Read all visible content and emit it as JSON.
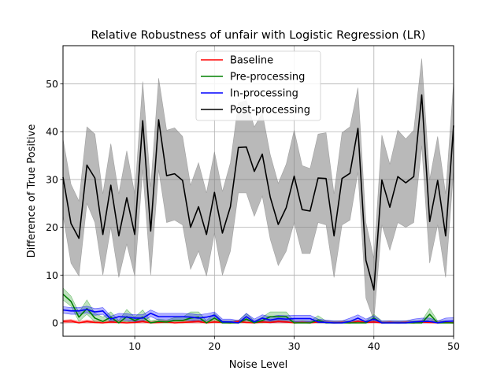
{
  "chart_data": {
    "type": "line",
    "title": "Relative Robustness of unfair with Logistic Regression (LR)",
    "xlabel": "Noise Level",
    "ylabel": "Difference of True Positive",
    "xlim": [
      1,
      50
    ],
    "ylim": [
      -2.8,
      58
    ],
    "xticks": [
      10,
      20,
      30,
      40,
      50
    ],
    "yticks": [
      0,
      10,
      20,
      30,
      40,
      50
    ],
    "grid": true,
    "legend_position": "upper center",
    "x": [
      1,
      2,
      3,
      4,
      5,
      6,
      7,
      8,
      9,
      10,
      11,
      12,
      13,
      14,
      15,
      16,
      17,
      18,
      19,
      20,
      21,
      22,
      23,
      24,
      25,
      26,
      27,
      28,
      29,
      30,
      31,
      32,
      33,
      34,
      35,
      36,
      37,
      38,
      39,
      40,
      41,
      42,
      43,
      44,
      45,
      46,
      47,
      48,
      49,
      50
    ],
    "series": [
      {
        "name": "Baseline",
        "color": "#ff0000",
        "band_color": "#ff0000",
        "values": [
          0.3,
          0.4,
          0.0,
          0.3,
          0.1,
          0.0,
          0.2,
          0.1,
          0.0,
          0.1,
          0.3,
          0.0,
          0.1,
          0.2,
          0.0,
          0.1,
          0.2,
          0.3,
          0.0,
          0.2,
          0.1,
          0.0,
          0.3,
          0.1,
          0.0,
          0.2,
          0.1,
          0.3,
          0.2,
          0.0,
          0.1,
          0.0,
          0.2,
          0.1,
          0.0,
          0.1,
          0.0,
          0.3,
          0.1,
          0.2,
          0.0,
          0.1,
          0.0,
          0.1,
          0.0,
          0.2,
          0.1,
          0.0,
          0.1,
          0.0
        ],
        "lower": [
          0.0,
          0.1,
          0.0,
          0.0,
          0.0,
          0.0,
          0.0,
          0.0,
          0.0,
          0.0,
          0.0,
          0.0,
          0.0,
          0.0,
          0.0,
          0.0,
          0.0,
          0.0,
          0.0,
          0.0,
          0.0,
          0.0,
          0.0,
          0.0,
          0.0,
          0.0,
          0.0,
          0.0,
          0.0,
          0.0,
          0.0,
          0.0,
          0.0,
          0.0,
          0.0,
          0.0,
          0.0,
          0.0,
          0.0,
          0.0,
          0.0,
          0.0,
          0.0,
          0.0,
          0.0,
          0.0,
          0.0,
          0.0,
          0.0,
          0.0
        ],
        "upper": [
          0.6,
          0.7,
          0.3,
          0.6,
          0.4,
          0.3,
          0.5,
          0.4,
          0.3,
          0.4,
          0.6,
          0.3,
          0.4,
          0.5,
          0.3,
          0.4,
          0.5,
          0.6,
          0.3,
          0.5,
          0.4,
          0.3,
          0.6,
          0.4,
          0.3,
          0.5,
          0.4,
          0.6,
          0.5,
          0.3,
          0.4,
          0.3,
          0.5,
          0.4,
          0.3,
          0.4,
          0.3,
          0.6,
          0.4,
          0.5,
          0.3,
          0.4,
          0.3,
          0.4,
          0.3,
          0.5,
          0.4,
          0.3,
          0.4,
          0.3
        ]
      },
      {
        "name": "Pre-processing",
        "color": "#008000",
        "band_color": "#2ca02c",
        "values": [
          6.0,
          4.5,
          1.2,
          3.0,
          1.0,
          0.3,
          1.2,
          0.0,
          1.3,
          0.5,
          1.2,
          0.0,
          0.3,
          0.2,
          0.5,
          0.5,
          1.0,
          1.2,
          0.0,
          1.0,
          0.0,
          0.0,
          0.0,
          0.8,
          0.0,
          0.5,
          1.3,
          1.3,
          1.3,
          0.0,
          0.0,
          0.0,
          0.6,
          0.0,
          0.0,
          0.0,
          0.0,
          0.0,
          0.0,
          1.0,
          0.0,
          0.0,
          0.0,
          0.0,
          0.0,
          0.0,
          1.8,
          0.0,
          0.0,
          0.0
        ],
        "lower": [
          4.8,
          3.5,
          0.3,
          1.8,
          0.2,
          0.0,
          0.3,
          0.0,
          0.3,
          0.0,
          0.3,
          0.0,
          0.0,
          0.0,
          0.0,
          0.0,
          0.2,
          0.3,
          0.0,
          0.2,
          0.0,
          0.0,
          0.0,
          0.1,
          0.0,
          0.0,
          0.3,
          0.3,
          0.3,
          0.0,
          0.0,
          0.0,
          0.0,
          0.0,
          0.0,
          0.0,
          0.0,
          0.0,
          0.0,
          0.2,
          0.0,
          0.0,
          0.0,
          0.0,
          0.0,
          0.0,
          0.7,
          0.0,
          0.0,
          0.0
        ],
        "upper": [
          7.3,
          5.6,
          2.2,
          4.8,
          2.0,
          1.2,
          2.3,
          0.5,
          2.8,
          1.2,
          2.7,
          0.4,
          0.8,
          0.6,
          1.1,
          1.2,
          2.3,
          2.3,
          0.5,
          2.0,
          0.4,
          0.4,
          0.4,
          2.0,
          0.4,
          1.2,
          2.3,
          2.3,
          2.3,
          0.4,
          0.4,
          0.4,
          1.5,
          0.4,
          0.4,
          0.4,
          0.4,
          0.4,
          0.4,
          1.8,
          0.4,
          0.4,
          0.4,
          0.4,
          0.4,
          0.4,
          3.0,
          0.4,
          0.4,
          0.4
        ]
      },
      {
        "name": "In-processing",
        "color": "#0000ff",
        "band_color": "#0000ff",
        "values": [
          2.7,
          2.5,
          2.5,
          2.8,
          2.3,
          2.5,
          0.8,
          1.3,
          1.2,
          1.0,
          1.0,
          2.0,
          1.3,
          1.3,
          1.3,
          1.3,
          1.2,
          1.0,
          1.2,
          1.6,
          0.2,
          0.2,
          0.0,
          1.3,
          0.2,
          1.0,
          0.6,
          0.9,
          0.8,
          0.9,
          0.9,
          0.9,
          0.2,
          0.1,
          0.0,
          0.0,
          0.3,
          1.0,
          0.2,
          0.8,
          0.0,
          0.0,
          0.0,
          0.0,
          0.2,
          0.3,
          0.3,
          0.0,
          0.3,
          0.4
        ],
        "lower": [
          2.0,
          1.8,
          1.8,
          2.1,
          1.6,
          1.8,
          0.2,
          0.6,
          0.5,
          0.3,
          0.3,
          1.3,
          0.6,
          0.6,
          0.6,
          0.6,
          0.5,
          0.3,
          0.5,
          0.9,
          0.0,
          0.0,
          0.0,
          0.6,
          0.0,
          0.3,
          0.0,
          0.2,
          0.1,
          0.2,
          0.2,
          0.2,
          0.0,
          0.0,
          0.0,
          0.0,
          0.0,
          0.3,
          0.0,
          0.1,
          0.0,
          0.0,
          0.0,
          0.0,
          0.0,
          0.0,
          0.0,
          0.0,
          0.0,
          0.0
        ],
        "upper": [
          3.4,
          3.2,
          3.2,
          3.5,
          3.0,
          3.2,
          1.4,
          2.0,
          1.9,
          1.7,
          1.7,
          2.7,
          2.0,
          2.0,
          2.0,
          2.0,
          1.9,
          1.7,
          1.9,
          2.3,
          0.8,
          0.8,
          0.5,
          2.0,
          0.8,
          1.7,
          1.3,
          1.6,
          1.5,
          1.6,
          1.6,
          1.6,
          0.8,
          0.6,
          0.4,
          0.4,
          1.0,
          1.7,
          0.8,
          1.5,
          0.4,
          0.4,
          0.4,
          0.4,
          0.8,
          1.0,
          1.0,
          0.4,
          1.0,
          1.1
        ]
      },
      {
        "name": "Post-processing",
        "color": "#000000",
        "band_color": "#808080",
        "values": [
          30.5,
          20.8,
          17.7,
          33.0,
          30.3,
          18.5,
          28.8,
          18.2,
          26.2,
          18.5,
          42.3,
          19.2,
          42.5,
          30.8,
          31.2,
          29.8,
          20.0,
          24.3,
          18.5,
          27.3,
          18.8,
          24.3,
          36.7,
          36.8,
          31.7,
          35.3,
          26.3,
          20.6,
          24.1,
          30.7,
          23.7,
          23.4,
          30.3,
          30.2,
          18.2,
          30.2,
          31.3,
          40.7,
          13.1,
          6.9,
          29.9,
          24.2,
          30.6,
          29.3,
          30.6,
          47.7,
          21.2,
          29.8,
          18.2,
          41.3
        ],
        "lower": [
          22.5,
          12.5,
          9.8,
          25.0,
          21.0,
          10.0,
          20.0,
          9.5,
          16.5,
          9.8,
          32.0,
          10.0,
          32.0,
          21.0,
          21.5,
          20.5,
          11.2,
          15.0,
          9.8,
          18.8,
          10.0,
          15.0,
          27.2,
          27.2,
          22.3,
          26.5,
          17.5,
          12.0,
          15.0,
          21.0,
          14.5,
          14.5,
          21.0,
          20.5,
          9.5,
          20.5,
          21.5,
          31.5,
          5.2,
          0.5,
          20.5,
          15.2,
          21.0,
          20.0,
          21.0,
          37.0,
          12.5,
          20.5,
          9.5,
          32.0
        ],
        "upper": [
          38.5,
          29.0,
          25.5,
          41.0,
          39.5,
          27.0,
          37.5,
          27.0,
          36.0,
          27.0,
          50.5,
          28.5,
          51.2,
          40.3,
          40.8,
          39.0,
          28.8,
          33.5,
          27.2,
          35.8,
          27.5,
          33.5,
          46.0,
          46.5,
          41.0,
          44.0,
          35.2,
          29.2,
          33.2,
          40.3,
          32.9,
          32.3,
          39.5,
          39.8,
          27.0,
          39.8,
          41.0,
          49.2,
          21.0,
          13.5,
          39.3,
          33.2,
          40.3,
          38.5,
          40.3,
          55.3,
          30.0,
          39.0,
          27.0,
          50.5
        ]
      }
    ]
  }
}
